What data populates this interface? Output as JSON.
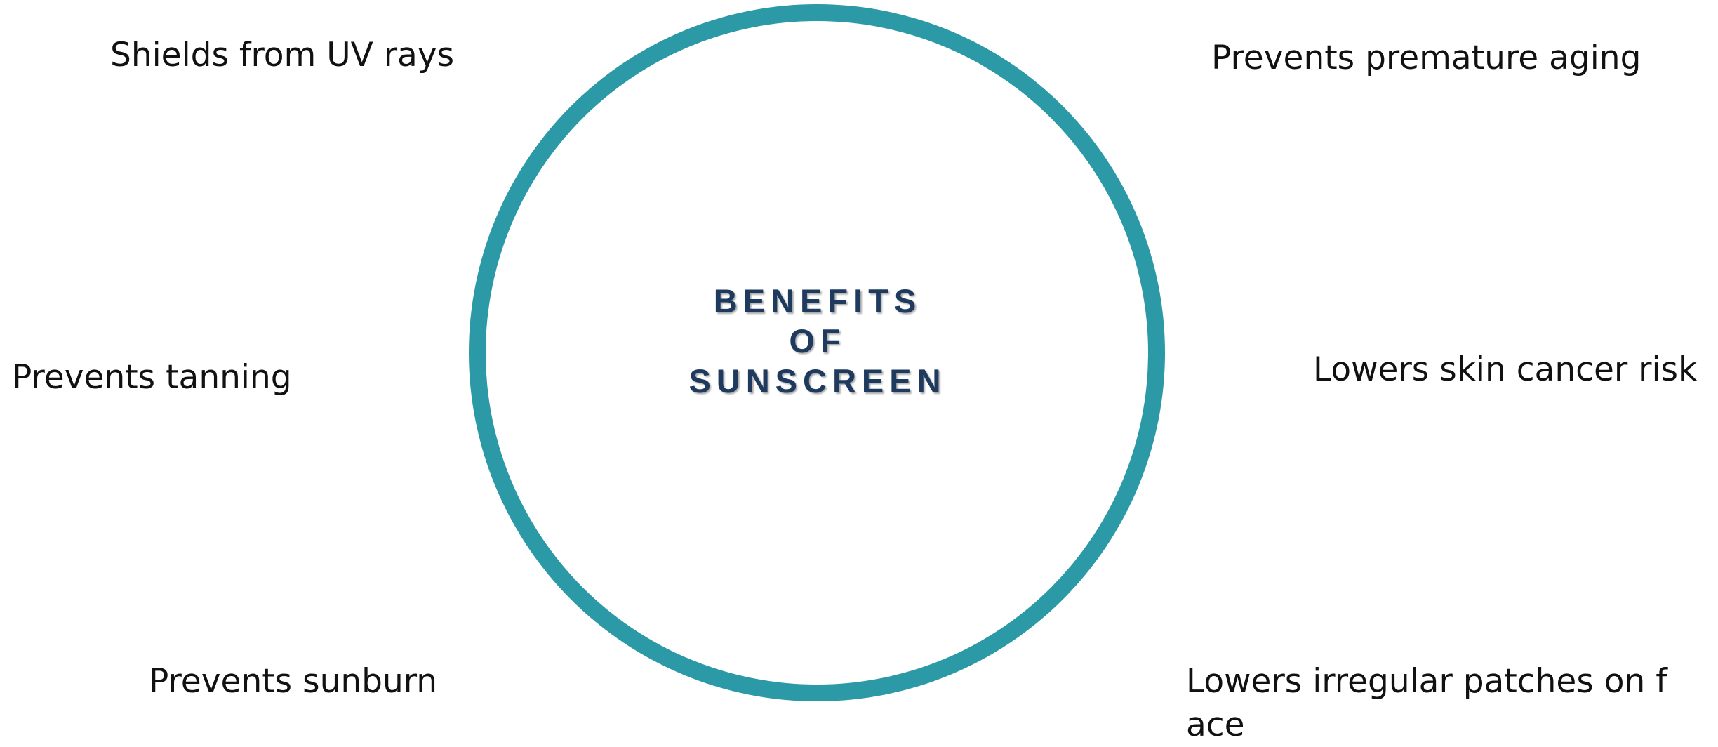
{
  "diagram": {
    "center_title": [
      "BENEFITS",
      "OF",
      "SUNSCREEN"
    ],
    "labels": {
      "top_left": "Shields from UV rays",
      "middle_left": "Prevents tanning",
      "bottom_left": "Prevents sunburn",
      "top_right": "Prevents premature aging",
      "middle_right": "Lowers skin cancer risk",
      "bottom_right_line1": "Lowers irregular patches on f",
      "bottom_right_line2": "ace"
    },
    "colors": {
      "ring": "#2b99a6",
      "title": "#1f3a5f",
      "text": "#111111",
      "background": "#ffffff"
    }
  }
}
